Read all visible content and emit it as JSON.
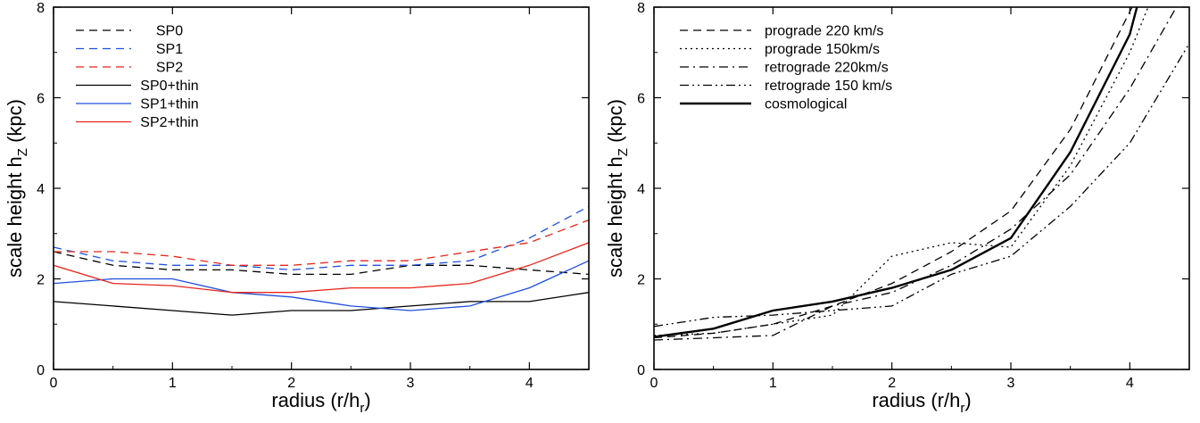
{
  "chart_data": [
    {
      "type": "line",
      "xlabel": "radius (r/h",
      "xlabel_sub": "r",
      "xlabel_close": ")",
      "ylabel": "scale height  h",
      "ylabel_sub": "Z",
      "ylabel_unit": " (kpc)",
      "xlim": [
        0,
        4.5
      ],
      "ylim": [
        0,
        8
      ],
      "xticks": [
        "0",
        "1",
        "2",
        "3",
        "4"
      ],
      "yticks": [
        "0",
        "2",
        "4",
        "6",
        "8"
      ],
      "grid": false,
      "legend_position": "top-left",
      "series": [
        {
          "name": "SP0",
          "color": "#000000",
          "dash": "dashed",
          "x": [
            0,
            0.5,
            1,
            1.5,
            2,
            2.5,
            3,
            3.5,
            4,
            4.5
          ],
          "y": [
            2.6,
            2.3,
            2.2,
            2.2,
            2.1,
            2.1,
            2.3,
            2.3,
            2.2,
            2.1
          ]
        },
        {
          "name": "SP1",
          "color": "#1f4fe0",
          "dash": "dashed",
          "x": [
            0,
            0.5,
            1,
            1.5,
            2,
            2.5,
            3,
            3.5,
            4,
            4.5
          ],
          "y": [
            2.7,
            2.4,
            2.3,
            2.3,
            2.2,
            2.3,
            2.3,
            2.4,
            2.9,
            3.6
          ]
        },
        {
          "name": "SP2",
          "color": "#e8261c",
          "dash": "dashed",
          "x": [
            0,
            0.5,
            1,
            1.5,
            2,
            2.5,
            3,
            3.5,
            4,
            4.5
          ],
          "y": [
            2.6,
            2.6,
            2.5,
            2.3,
            2.3,
            2.4,
            2.4,
            2.6,
            2.8,
            3.3
          ]
        },
        {
          "name": "SP0+thin",
          "color": "#000000",
          "dash": "solid",
          "x": [
            0,
            0.5,
            1,
            1.5,
            2,
            2.5,
            3,
            3.5,
            4,
            4.5
          ],
          "y": [
            1.5,
            1.4,
            1.3,
            1.2,
            1.3,
            1.3,
            1.4,
            1.5,
            1.5,
            1.7
          ]
        },
        {
          "name": "SP1+thin",
          "color": "#1f4fe0",
          "dash": "solid",
          "x": [
            0,
            0.5,
            1,
            1.5,
            2,
            2.5,
            3,
            3.5,
            4,
            4.5
          ],
          "y": [
            1.9,
            2.0,
            2.0,
            1.7,
            1.6,
            1.4,
            1.3,
            1.4,
            1.8,
            2.4
          ]
        },
        {
          "name": "SP2+thin",
          "color": "#e8261c",
          "dash": "solid",
          "x": [
            0,
            0.5,
            1,
            1.5,
            2,
            2.5,
            3,
            3.5,
            4,
            4.5
          ],
          "y": [
            2.3,
            1.9,
            1.85,
            1.7,
            1.7,
            1.8,
            1.8,
            1.9,
            2.3,
            2.8
          ]
        }
      ]
    },
    {
      "type": "line",
      "xlabel": "radius (r/h",
      "xlabel_sub": "r",
      "xlabel_close": ")",
      "ylabel": "scale height  h",
      "ylabel_sub": "Z",
      "ylabel_unit": " (kpc)",
      "xlim": [
        0,
        4.5
      ],
      "ylim": [
        0,
        8
      ],
      "xticks": [
        "0",
        "1",
        "2",
        "3",
        "4"
      ],
      "yticks": [
        "0",
        "2",
        "4",
        "6",
        "8"
      ],
      "grid": false,
      "legend_position": "top-left",
      "series": [
        {
          "name": "prograde 220 km/s",
          "color": "#000000",
          "dash": "dashed",
          "x": [
            0,
            0.5,
            1,
            1.5,
            2,
            2.5,
            3,
            3.5,
            4,
            4.1
          ],
          "y": [
            0.7,
            0.8,
            1.0,
            1.4,
            1.9,
            2.6,
            3.5,
            5.3,
            7.9,
            8.4
          ]
        },
        {
          "name": "prograde 150km/s",
          "color": "#000000",
          "dash": "dotted",
          "x": [
            0,
            0.5,
            1,
            1.5,
            2,
            2.5,
            3,
            3.5,
            4,
            4.2
          ],
          "y": [
            0.75,
            0.8,
            1.0,
            1.2,
            2.5,
            2.8,
            2.7,
            4.5,
            7.0,
            8.3
          ]
        },
        {
          "name": "retrograde 220km/s",
          "color": "#000000",
          "dash": "dashdot",
          "x": [
            0,
            0.5,
            1,
            1.5,
            2,
            2.5,
            3,
            3.5,
            4,
            4.5
          ],
          "y": [
            0.65,
            0.7,
            0.75,
            1.4,
            1.7,
            2.3,
            3.1,
            4.3,
            6.2,
            8.5
          ]
        },
        {
          "name": "retrograde 150 km/s",
          "color": "#000000",
          "dash": "dashdotdot",
          "x": [
            0,
            0.5,
            1,
            1.5,
            2,
            2.5,
            3,
            3.5,
            4,
            4.5
          ],
          "y": [
            0.95,
            1.15,
            1.2,
            1.3,
            1.4,
            2.1,
            2.5,
            3.6,
            5.0,
            7.2
          ]
        },
        {
          "name": "cosmological",
          "color": "#000000",
          "dash": "solid",
          "bold": true,
          "x": [
            0,
            0.5,
            1,
            1.5,
            2,
            2.5,
            3,
            3.5,
            4,
            4.1
          ],
          "y": [
            0.72,
            0.9,
            1.3,
            1.5,
            1.8,
            2.2,
            2.9,
            4.8,
            7.4,
            8.4
          ]
        }
      ]
    }
  ]
}
